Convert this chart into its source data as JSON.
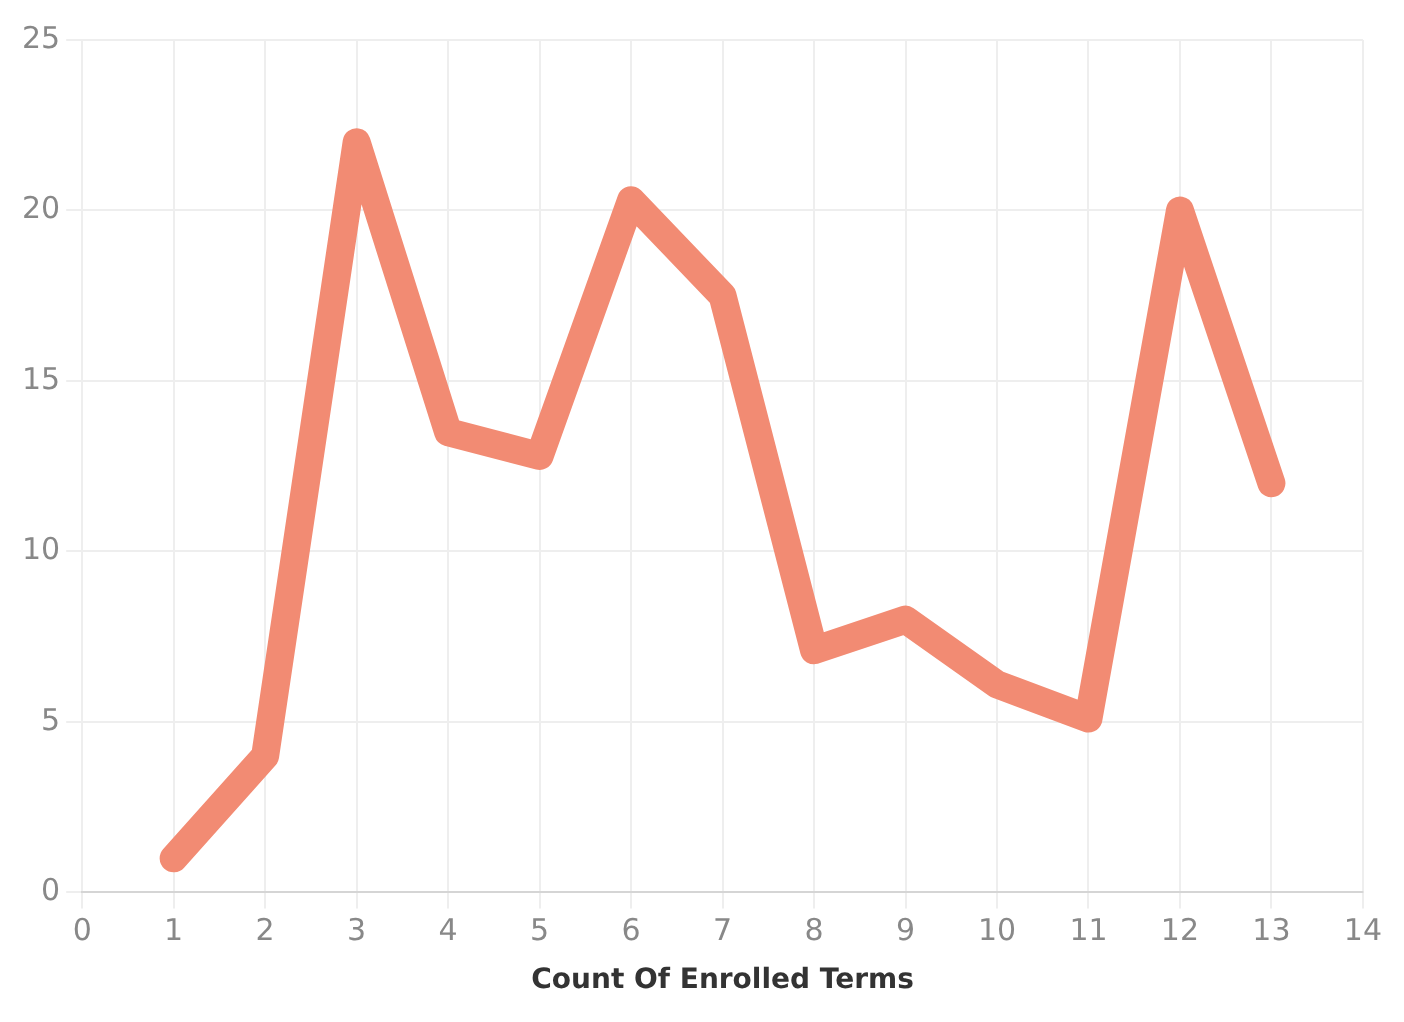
{
  "chart_data": {
    "type": "line",
    "xlabel": "Count Of Enrolled Terms",
    "x": [
      1,
      2,
      3,
      4,
      5,
      6,
      7,
      8,
      9,
      10,
      11,
      12,
      13
    ],
    "series": [
      {
        "color": "#f28b73",
        "values": [
          1,
          4,
          22,
          13.5,
          12.8,
          20.3,
          17.5,
          7.1,
          8,
          6.1,
          5.1,
          20,
          12
        ]
      }
    ],
    "xlim": [
      0,
      14
    ],
    "xticks": [
      0,
      1,
      2,
      3,
      4,
      5,
      6,
      7,
      8,
      9,
      10,
      11,
      12,
      13,
      14
    ],
    "ylim": [
      0,
      25
    ],
    "yticks": [
      0,
      5,
      10,
      15,
      20,
      25
    ],
    "grid": true,
    "legend": false,
    "marker": "none",
    "line_style": "solid"
  }
}
